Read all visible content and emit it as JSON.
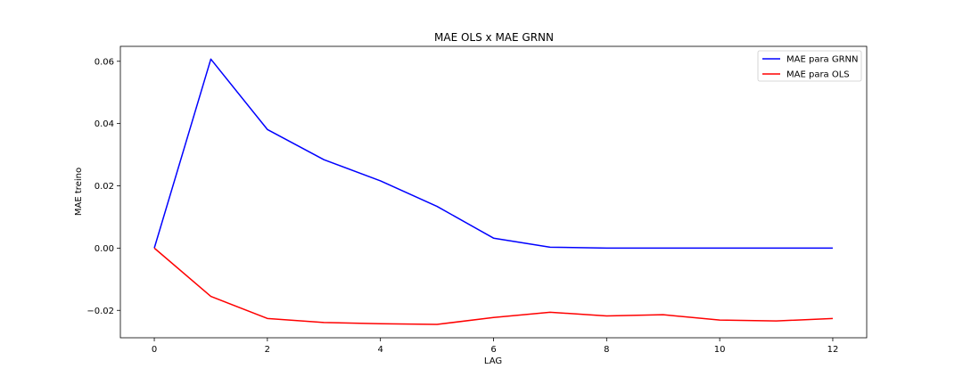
{
  "chart_data": {
    "type": "line",
    "title": "MAE OLS x MAE GRNN",
    "xlabel": "LAG",
    "ylabel": "MAE treino",
    "xlim": [
      -0.6,
      12.6
    ],
    "ylim": [
      -0.0288,
      0.0648
    ],
    "xticks": [
      0,
      2,
      4,
      6,
      8,
      10,
      12
    ],
    "xtick_labels": [
      "0",
      "2",
      "4",
      "6",
      "8",
      "10",
      "12"
    ],
    "yticks": [
      -0.02,
      0.0,
      0.02,
      0.04,
      0.06
    ],
    "ytick_labels": [
      "−0.02",
      "0.00",
      "0.02",
      "0.04",
      "0.06"
    ],
    "grid": false,
    "legend_position": "top-right",
    "x": [
      0,
      1,
      2,
      3,
      4,
      5,
      6,
      7,
      8,
      9,
      10,
      11,
      12
    ],
    "series": [
      {
        "name": "MAE para GRNN",
        "color": "#0000ff",
        "values": [
          0.0,
          0.0607,
          0.0381,
          0.0284,
          0.0216,
          0.0134,
          0.0032,
          0.0003,
          0.0,
          0.0,
          0.0,
          0.0,
          0.0
        ]
      },
      {
        "name": "MAE para OLS",
        "color": "#ff0000",
        "values": [
          0.0,
          -0.0155,
          -0.0226,
          -0.0239,
          -0.0243,
          -0.0245,
          -0.0223,
          -0.0206,
          -0.0218,
          -0.0214,
          -0.0231,
          -0.0234,
          -0.0226
        ]
      }
    ]
  }
}
